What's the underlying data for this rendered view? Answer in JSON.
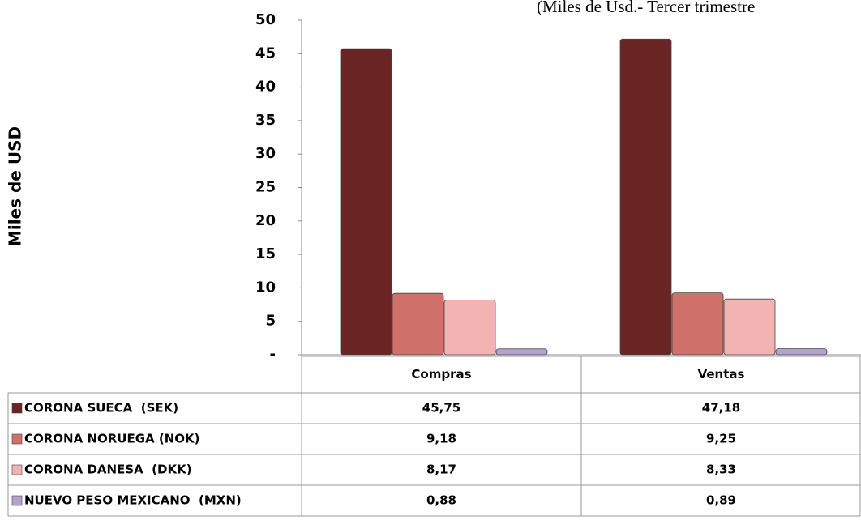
{
  "chart_data": {
    "type": "bar",
    "title": "(Miles de Usd.- Tercer trimestre",
    "ylabel": "Miles de USD",
    "categories": [
      "Compras",
      "Ventas"
    ],
    "series": [
      {
        "name": "CORONA SUECA  (SEK)",
        "color": "#6b2424",
        "values": [
          45.75,
          47.18
        ],
        "value_labels": [
          "45,75",
          "47,18"
        ]
      },
      {
        "name": "CORONA NORUEGA (NOK)",
        "color": "#d0706b",
        "values": [
          9.18,
          9.25
        ],
        "value_labels": [
          "9,18",
          "9,25"
        ]
      },
      {
        "name": "CORONA DANESA  (DKK)",
        "color": "#f2b3b3",
        "values": [
          8.17,
          8.33
        ],
        "value_labels": [
          "8,17",
          "8,33"
        ]
      },
      {
        "name": "NUEVO PESO MEXICANO  (MXN)",
        "color": "#b3a3cc",
        "values": [
          0.88,
          0.89
        ],
        "value_labels": [
          "0,88",
          "0,89"
        ]
      }
    ],
    "ylim": [
      0,
      50
    ],
    "yticks": [
      {
        "value": 0,
        "label": "-"
      },
      5,
      10,
      15,
      20,
      25,
      30,
      35,
      40,
      45,
      50
    ],
    "grid": false
  }
}
